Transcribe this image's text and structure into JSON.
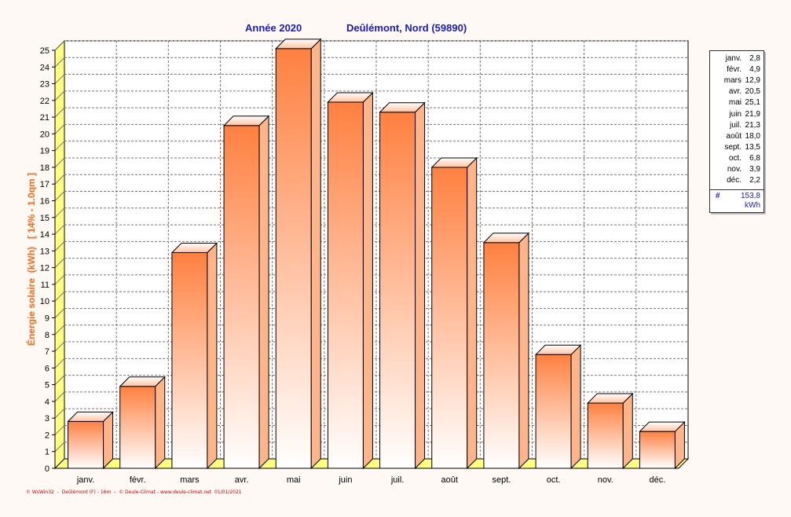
{
  "chart_data": {
    "type": "bar",
    "title_year": "Année  2020",
    "title_location": "Deûlémont, Nord (59890)",
    "ylabel": "Énergie solaire  (kWh)   [ 14% - 1.0qm ]",
    "categories": [
      "janv.",
      "févr.",
      "mars",
      "avr.",
      "mai",
      "juin",
      "juil.",
      "août",
      "sept.",
      "oct.",
      "nov.",
      "déc."
    ],
    "values": [
      2.8,
      4.9,
      12.9,
      20.5,
      25.1,
      21.9,
      21.3,
      18.0,
      13.5,
      6.8,
      3.9,
      2.2
    ],
    "ylim": [
      0,
      25
    ],
    "yticks": [
      0,
      1,
      2,
      3,
      4,
      5,
      6,
      7,
      8,
      9,
      10,
      11,
      12,
      13,
      14,
      15,
      16,
      17,
      18,
      19,
      20,
      21,
      22,
      23,
      24,
      25
    ],
    "grid": true,
    "legend_position": "right",
    "colors": {
      "bar_top": "#ff8040",
      "bar_bottom": "#ffffff",
      "bar_side": "#ffb48a",
      "wall": "#ffff80",
      "title": "#1a1acc",
      "ylabel": "#ff6a1a",
      "footer": "#cc0000"
    }
  },
  "legend": {
    "rows": [
      {
        "name": "janv.",
        "value": "2,8"
      },
      {
        "name": "févr.",
        "value": "4,9"
      },
      {
        "name": "mars",
        "value": "12,9"
      },
      {
        "name": "avr.",
        "value": "20,5"
      },
      {
        "name": "mai",
        "value": "25,1"
      },
      {
        "name": "juin",
        "value": "21,9"
      },
      {
        "name": "juil.",
        "value": "21,3"
      },
      {
        "name": "août",
        "value": "18,0"
      },
      {
        "name": "sept.",
        "value": "13,5"
      },
      {
        "name": "oct.",
        "value": "6,8"
      },
      {
        "name": "nov.",
        "value": "3,9"
      },
      {
        "name": "déc.",
        "value": "2,2"
      }
    ],
    "total_symbol": "#",
    "total_value": "153,8",
    "total_unit": "kWh"
  },
  "footer": "© WsWin32  -  Deûlémont (F) - 16m  -  © Deule-Climat - www.deule-climat.net  01/01/2021"
}
